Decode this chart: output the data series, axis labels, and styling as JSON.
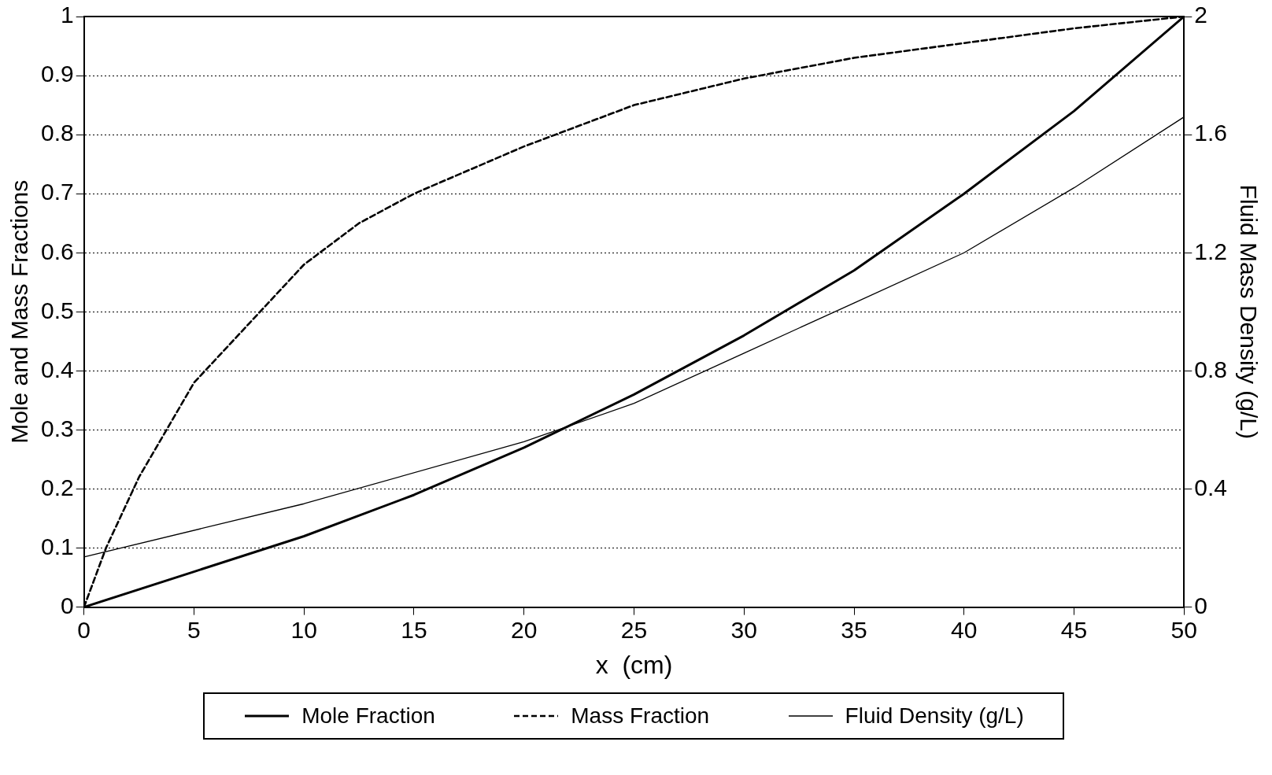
{
  "chart_data": {
    "type": "line",
    "xlabel": "x  (cm)",
    "ylabel": "Mole and Mass Fractions",
    "y2label": "Fluid Mass Density (g/L)",
    "xlim": [
      0,
      50
    ],
    "xticks": [
      0,
      5,
      10,
      15,
      20,
      25,
      30,
      35,
      40,
      45,
      50
    ],
    "ylim": [
      0,
      1
    ],
    "yticks": [
      0,
      0.1,
      0.2,
      0.3,
      0.4,
      0.5,
      0.6,
      0.7,
      0.8,
      0.9,
      1
    ],
    "y2lim": [
      0,
      2
    ],
    "y2ticks": [
      0,
      0.4,
      0.8,
      1.2,
      1.6,
      2
    ],
    "grid": "y",
    "legend": "bottom",
    "marker": "none",
    "series": [
      {
        "name": "Mole Fraction",
        "color": "#000000",
        "line_style": "solid",
        "x": [
          0,
          5,
          10,
          15,
          20,
          25,
          30,
          35,
          40,
          45,
          50
        ],
        "values": [
          0,
          0.06,
          0.12,
          0.19,
          0.27,
          0.36,
          0.46,
          0.57,
          0.7,
          0.84,
          1
        ]
      },
      {
        "name": "Mass Fraction",
        "color": "#000000",
        "line_style": "dashed",
        "x": [
          0,
          1,
          2.5,
          5,
          7.5,
          10,
          12.5,
          15,
          20,
          25,
          30,
          35,
          40,
          45,
          50
        ],
        "values": [
          0,
          0.1,
          0.22,
          0.38,
          0.48,
          0.58,
          0.65,
          0.7,
          0.78,
          0.85,
          0.895,
          0.93,
          0.955,
          0.98,
          1
        ]
      },
      {
        "name": "Fluid Density (g/L)",
        "color": "#000000",
        "line_style": "solid",
        "axis": "y2",
        "x": [
          0,
          10,
          20,
          25,
          30,
          35,
          40,
          45,
          50
        ],
        "values": [
          0.17,
          0.35,
          0.56,
          0.69,
          0.86,
          1.03,
          1.2,
          1.42,
          1.66
        ]
      }
    ]
  }
}
